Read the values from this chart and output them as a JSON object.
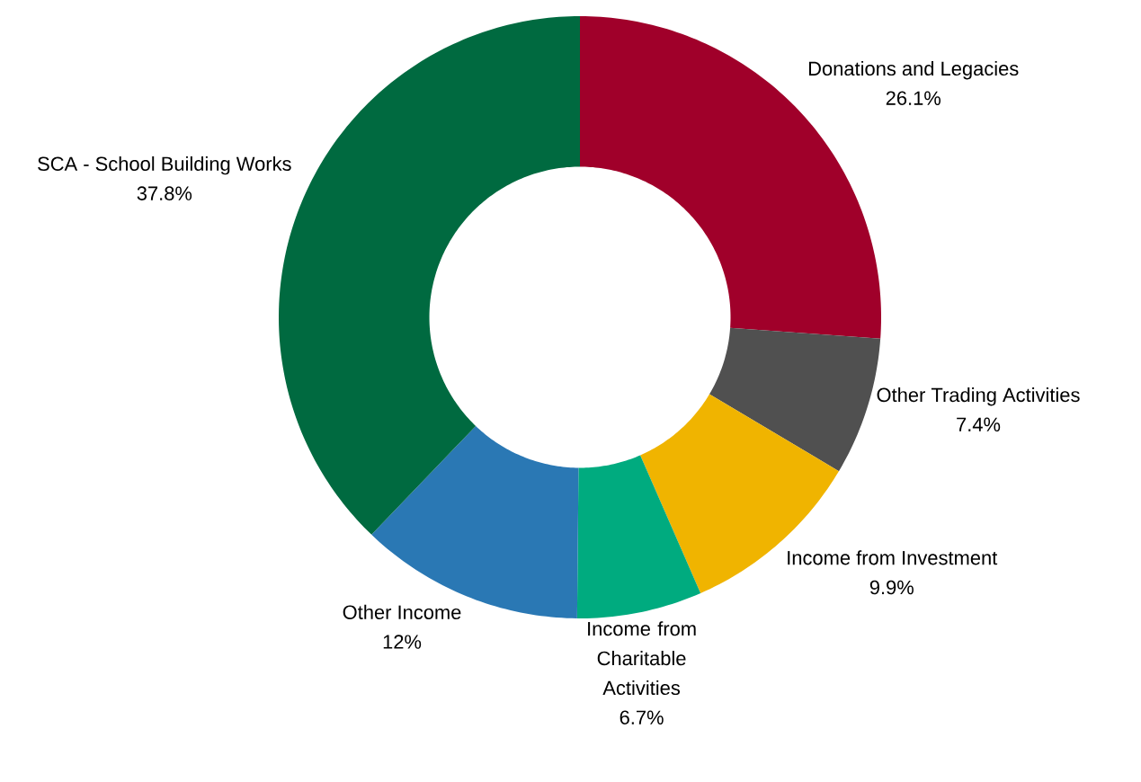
{
  "chart_data": {
    "type": "donut",
    "categories": [
      "Donations and Legacies",
      "Other Trading Activities",
      "Income from Investment",
      "Income from Charitable Activities",
      "Other Income",
      "SCA - School Building Works"
    ],
    "values": [
      26.1,
      7.4,
      9.9,
      6.7,
      12,
      37.8
    ],
    "value_labels": [
      "26.1%",
      "7.4%",
      "9.9%",
      "6.7%",
      "12%",
      "37.8%"
    ],
    "colors": [
      "#a0002a",
      "#505050",
      "#f0b400",
      "#00ab7f",
      "#2a78b4",
      "#006a40"
    ]
  }
}
